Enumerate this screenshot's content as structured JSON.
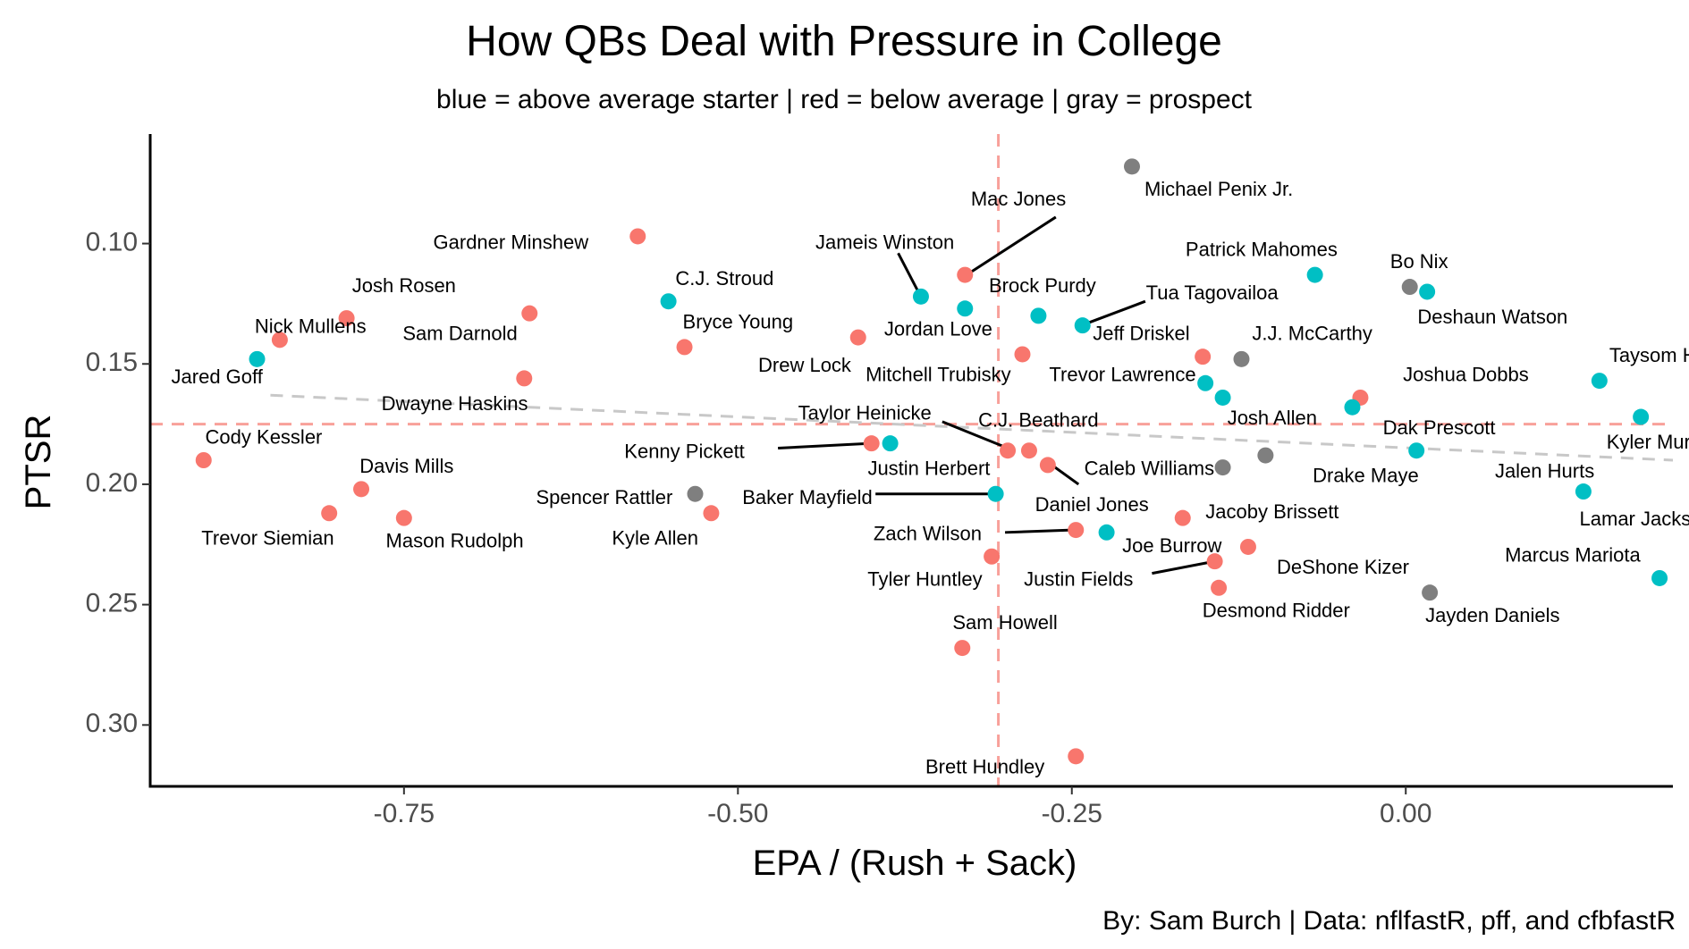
{
  "chart_data": {
    "type": "scatter",
    "title": "How QBs Deal with Pressure in College",
    "subtitle": "blue = above average starter  | red = below average  |  gray = prospect",
    "caption": "By: Sam Burch  |  Data: nflfastR, pff, and cfbfastR",
    "xlabel": "EPA / (Rush + Sack)",
    "ylabel": "PTSR",
    "xlim": [
      -0.94,
      0.2
    ],
    "ylim": [
      0.3255,
      0.0545
    ],
    "y_reversed": true,
    "x_ticks": [
      -0.75,
      -0.5,
      -0.25,
      0.0
    ],
    "x_tick_labels": [
      "-0.75",
      "-0.50",
      "-0.25",
      "0.00"
    ],
    "y_ticks": [
      0.1,
      0.15,
      0.2,
      0.25,
      0.3
    ],
    "y_tick_labels": [
      "0.10",
      "0.15",
      "0.20",
      "0.25",
      "0.30"
    ],
    "grid": false,
    "reference_lines": {
      "x": -0.305,
      "y": 0.175
    },
    "trend_line": {
      "x": [
        -0.85,
        0.2
      ],
      "y": [
        0.163,
        0.19
      ]
    },
    "colors": {
      "blue": "#00BFC4",
      "red": "#F8766D",
      "gray": "#7F7F7F",
      "reference": "#F8A09A",
      "trend": "#C8C8C8"
    },
    "points": [
      {
        "name": "Michael Penix Jr.",
        "x": -0.205,
        "y": 0.068,
        "group": "gray"
      },
      {
        "name": "Gardner Minshew",
        "x": -0.575,
        "y": 0.097,
        "group": "red"
      },
      {
        "name": "Mac Jones",
        "x": -0.33,
        "y": 0.113,
        "group": "red"
      },
      {
        "name": "Jameis Winston",
        "x": -0.363,
        "y": 0.122,
        "group": "blue"
      },
      {
        "name": "Patrick Mahomes",
        "x": -0.068,
        "y": 0.113,
        "group": "blue"
      },
      {
        "name": "Bo Nix",
        "x": 0.003,
        "y": 0.118,
        "group": "gray"
      },
      {
        "name": "Deshaun Watson",
        "x": 0.016,
        "y": 0.12,
        "group": "blue"
      },
      {
        "name": "C.J. Stroud",
        "x": -0.552,
        "y": 0.124,
        "group": "blue"
      },
      {
        "name": "Josh Rosen",
        "x": -0.793,
        "y": 0.131,
        "group": "red"
      },
      {
        "name": "Sam Darnold",
        "x": -0.656,
        "y": 0.129,
        "group": "red"
      },
      {
        "name": "Nick Mullens",
        "x": -0.843,
        "y": 0.14,
        "group": "red"
      },
      {
        "name": "Jared Goff",
        "x": -0.86,
        "y": 0.148,
        "group": "blue"
      },
      {
        "name": "Brock Purdy",
        "x": -0.33,
        "y": 0.127,
        "group": "blue"
      },
      {
        "name": "Tua Tagovailoa",
        "x": -0.242,
        "y": 0.134,
        "group": "blue"
      },
      {
        "name": "Jeff Driskel",
        "x": -0.275,
        "y": 0.13,
        "group": "blue"
      },
      {
        "name": "Bryce Young",
        "x": -0.54,
        "y": 0.143,
        "group": "red"
      },
      {
        "name": "Jordan Love",
        "x": -0.41,
        "y": 0.139,
        "group": "red"
      },
      {
        "name": "Dwayne Haskins",
        "x": -0.66,
        "y": 0.156,
        "group": "red"
      },
      {
        "name": "J.J. McCarthy",
        "x": -0.123,
        "y": 0.148,
        "group": "gray"
      },
      {
        "name": "Drew Lock",
        "x": -0.287,
        "y": 0.146,
        "group": "red"
      },
      {
        "name": "Mitchell Trubisky",
        "x": -0.152,
        "y": 0.147,
        "group": "red"
      },
      {
        "name": "Trevor Lawrence",
        "x": -0.15,
        "y": 0.158,
        "group": "blue"
      },
      {
        "name": "Josh Allen",
        "x": -0.137,
        "y": 0.164,
        "group": "blue"
      },
      {
        "name": "Joshua Dobbs",
        "x": -0.034,
        "y": 0.164,
        "group": "red"
      },
      {
        "name": "Dak Prescott",
        "x": -0.04,
        "y": 0.168,
        "group": "blue"
      },
      {
        "name": "Taysom Hill",
        "x": 0.145,
        "y": 0.157,
        "group": "blue"
      },
      {
        "name": "Kyler Murray",
        "x": 0.176,
        "y": 0.172,
        "group": "blue"
      },
      {
        "name": "Cody Kessler",
        "x": -0.9,
        "y": 0.19,
        "group": "red"
      },
      {
        "name": "Taylor Heinicke",
        "x": -0.298,
        "y": 0.186,
        "group": "red"
      },
      {
        "name": "C.J. Beathard",
        "x": -0.282,
        "y": 0.186,
        "group": "red"
      },
      {
        "name": "Kenny Pickett",
        "x": -0.4,
        "y": 0.183,
        "group": "red"
      },
      {
        "name": "Justin Herbert",
        "x": -0.386,
        "y": 0.183,
        "group": "blue"
      },
      {
        "name": "Caleb Williams",
        "x": -0.268,
        "y": 0.192,
        "group": "red"
      },
      {
        "name": "Drake Maye",
        "x": -0.137,
        "y": 0.193,
        "group": "gray"
      },
      {
        "name": "Josh Allen 2",
        "x": -0.105,
        "y": 0.188,
        "group": "gray"
      },
      {
        "name": "Jalen Hurts",
        "x": 0.008,
        "y": 0.186,
        "group": "blue"
      },
      {
        "name": "Davis Mills",
        "x": -0.782,
        "y": 0.202,
        "group": "red"
      },
      {
        "name": "Spencer Rattler",
        "x": -0.532,
        "y": 0.204,
        "group": "gray"
      },
      {
        "name": "Baker Mayfield",
        "x": -0.307,
        "y": 0.204,
        "group": "blue"
      },
      {
        "name": "Lamar Jackson",
        "x": 0.133,
        "y": 0.203,
        "group": "blue"
      },
      {
        "name": "Trevor Siemian",
        "x": -0.806,
        "y": 0.212,
        "group": "red"
      },
      {
        "name": "Mason Rudolph",
        "x": -0.75,
        "y": 0.214,
        "group": "red"
      },
      {
        "name": "Kyle Allen",
        "x": -0.52,
        "y": 0.212,
        "group": "red"
      },
      {
        "name": "Jacoby Brissett",
        "x": -0.167,
        "y": 0.214,
        "group": "red"
      },
      {
        "name": "Daniel Jones",
        "x": -0.247,
        "y": 0.219,
        "group": "red"
      },
      {
        "name": "Zach Wilson",
        "x": -0.224,
        "y": 0.22,
        "group": "blue"
      },
      {
        "name": "Joe Burrow",
        "x": -0.118,
        "y": 0.226,
        "group": "red"
      },
      {
        "name": "Justin Fields",
        "x": -0.143,
        "y": 0.232,
        "group": "red"
      },
      {
        "name": "Tyler Huntley",
        "x": -0.31,
        "y": 0.23,
        "group": "red"
      },
      {
        "name": "Desmond Ridder",
        "x": -0.14,
        "y": 0.243,
        "group": "red"
      },
      {
        "name": "Jayden Daniels",
        "x": 0.018,
        "y": 0.245,
        "group": "gray"
      },
      {
        "name": "Marcus Mariota",
        "x": 0.19,
        "y": 0.239,
        "group": "blue"
      },
      {
        "name": "Sam Howell",
        "x": -0.332,
        "y": 0.268,
        "group": "red"
      },
      {
        "name": "Brett Hundley",
        "x": -0.247,
        "y": 0.313,
        "group": "red"
      }
    ],
    "labels": [
      {
        "text": "Michael Penix Jr.",
        "x": -0.14,
        "y": 0.078
      },
      {
        "text": "Gardner Minshew",
        "x": -0.67,
        "y": 0.1
      },
      {
        "text": "Mac Jones",
        "x": -0.29,
        "y": 0.082
      },
      {
        "text": "Jameis Winston",
        "x": -0.39,
        "y": 0.1
      },
      {
        "text": "Patrick Mahomes",
        "x": -0.108,
        "y": 0.103
      },
      {
        "text": "Bo Nix",
        "x": 0.01,
        "y": 0.108
      },
      {
        "text": "Deshaun Watson",
        "x": 0.065,
        "y": 0.131
      },
      {
        "text": "C.J. Stroud",
        "x": -0.51,
        "y": 0.115
      },
      {
        "text": "Josh Rosen",
        "x": -0.75,
        "y": 0.118
      },
      {
        "text": "Sam Darnold",
        "x": -0.708,
        "y": 0.138
      },
      {
        "text": "Nick Mullens",
        "x": -0.82,
        "y": 0.135
      },
      {
        "text": "Jared Goff",
        "x": -0.89,
        "y": 0.156
      },
      {
        "text": "Brock Purdy",
        "x": -0.272,
        "y": 0.118
      },
      {
        "text": "Tua Tagovailoa",
        "x": -0.145,
        "y": 0.121
      },
      {
        "text": "Jeff Driskel",
        "x": -0.198,
        "y": 0.138
      },
      {
        "text": "Bryce Young",
        "x": -0.5,
        "y": 0.133
      },
      {
        "text": "Jordan Love",
        "x": -0.35,
        "y": 0.136
      },
      {
        "text": "Dwayne Haskins",
        "x": -0.712,
        "y": 0.167
      },
      {
        "text": "J.J. McCarthy",
        "x": -0.07,
        "y": 0.138
      },
      {
        "text": "Drew Lock",
        "x": -0.45,
        "y": 0.151
      },
      {
        "text": "Mitchell Trubisky",
        "x": -0.35,
        "y": 0.155
      },
      {
        "text": "Trevor Lawrence",
        "x": -0.212,
        "y": 0.155
      },
      {
        "text": "Josh Allen",
        "x": -0.1,
        "y": 0.173
      },
      {
        "text": "Joshua Dobbs",
        "x": 0.045,
        "y": 0.155
      },
      {
        "text": "Dak Prescott",
        "x": 0.025,
        "y": 0.177
      },
      {
        "text": "Taysom Hill",
        "x": 0.19,
        "y": 0.147
      },
      {
        "text": "Kyler Murray",
        "x": 0.192,
        "y": 0.183
      },
      {
        "text": "Cody Kessler",
        "x": -0.855,
        "y": 0.181
      },
      {
        "text": "Taylor Heinicke",
        "x": -0.405,
        "y": 0.171
      },
      {
        "text": "C.J. Beathard",
        "x": -0.275,
        "y": 0.174
      },
      {
        "text": "Kenny Pickett",
        "x": -0.54,
        "y": 0.187
      },
      {
        "text": "Justin Herbert",
        "x": -0.357,
        "y": 0.194
      },
      {
        "text": "Caleb Williams",
        "x": -0.192,
        "y": 0.194
      },
      {
        "text": "Drake Maye",
        "x": -0.03,
        "y": 0.197
      },
      {
        "text": "Jalen Hurts",
        "x": 0.104,
        "y": 0.195
      },
      {
        "text": "Davis Mills",
        "x": -0.748,
        "y": 0.193
      },
      {
        "text": "Spencer Rattler",
        "x": -0.6,
        "y": 0.206
      },
      {
        "text": "Baker Mayfield",
        "x": -0.448,
        "y": 0.206
      },
      {
        "text": "Lamar Jackson",
        "x": 0.18,
        "y": 0.215
      },
      {
        "text": "Trevor Siemian",
        "x": -0.852,
        "y": 0.223
      },
      {
        "text": "Mason Rudolph",
        "x": -0.712,
        "y": 0.224
      },
      {
        "text": "Kyle Allen",
        "x": -0.562,
        "y": 0.223
      },
      {
        "text": "Jacoby Brissett",
        "x": -0.1,
        "y": 0.212
      },
      {
        "text": "Daniel Jones",
        "x": -0.235,
        "y": 0.209
      },
      {
        "text": "Zach Wilson",
        "x": -0.358,
        "y": 0.221
      },
      {
        "text": "Joe Burrow",
        "x": -0.175,
        "y": 0.226
      },
      {
        "text": "Justin Fields",
        "x": -0.245,
        "y": 0.24
      },
      {
        "text": "Tyler Huntley",
        "x": -0.36,
        "y": 0.24
      },
      {
        "text": "Desmond Ridder",
        "x": -0.097,
        "y": 0.253
      },
      {
        "text": "Jayden Daniels",
        "x": 0.065,
        "y": 0.255
      },
      {
        "text": "Marcus Mariota",
        "x": 0.125,
        "y": 0.23
      },
      {
        "text": "Sam Howell",
        "x": -0.3,
        "y": 0.258
      },
      {
        "text": "Brett Hundley",
        "x": -0.315,
        "y": 0.318
      },
      {
        "text": "DeShone Kizer",
        "x": -0.047,
        "y": 0.235
      }
    ],
    "leader_lines": [
      {
        "from": [
          -0.262,
          0.089
        ],
        "to": [
          -0.326,
          0.112
        ]
      },
      {
        "from": [
          -0.38,
          0.104
        ],
        "to": [
          -0.365,
          0.12
        ]
      },
      {
        "from": [
          -0.195,
          0.124
        ],
        "to": [
          -0.238,
          0.133
        ]
      },
      {
        "from": [
          -0.47,
          0.185
        ],
        "to": [
          -0.4,
          0.183
        ]
      },
      {
        "from": [
          -0.347,
          0.174
        ],
        "to": [
          -0.298,
          0.185
        ]
      },
      {
        "from": [
          -0.397,
          0.204
        ],
        "to": [
          -0.31,
          0.204
        ]
      },
      {
        "from": [
          -0.245,
          0.2
        ],
        "to": [
          -0.265,
          0.192
        ]
      },
      {
        "from": [
          -0.3,
          0.22
        ],
        "to": [
          -0.25,
          0.219
        ]
      },
      {
        "from": [
          -0.19,
          0.237
        ],
        "to": [
          -0.143,
          0.232
        ]
      }
    ]
  }
}
